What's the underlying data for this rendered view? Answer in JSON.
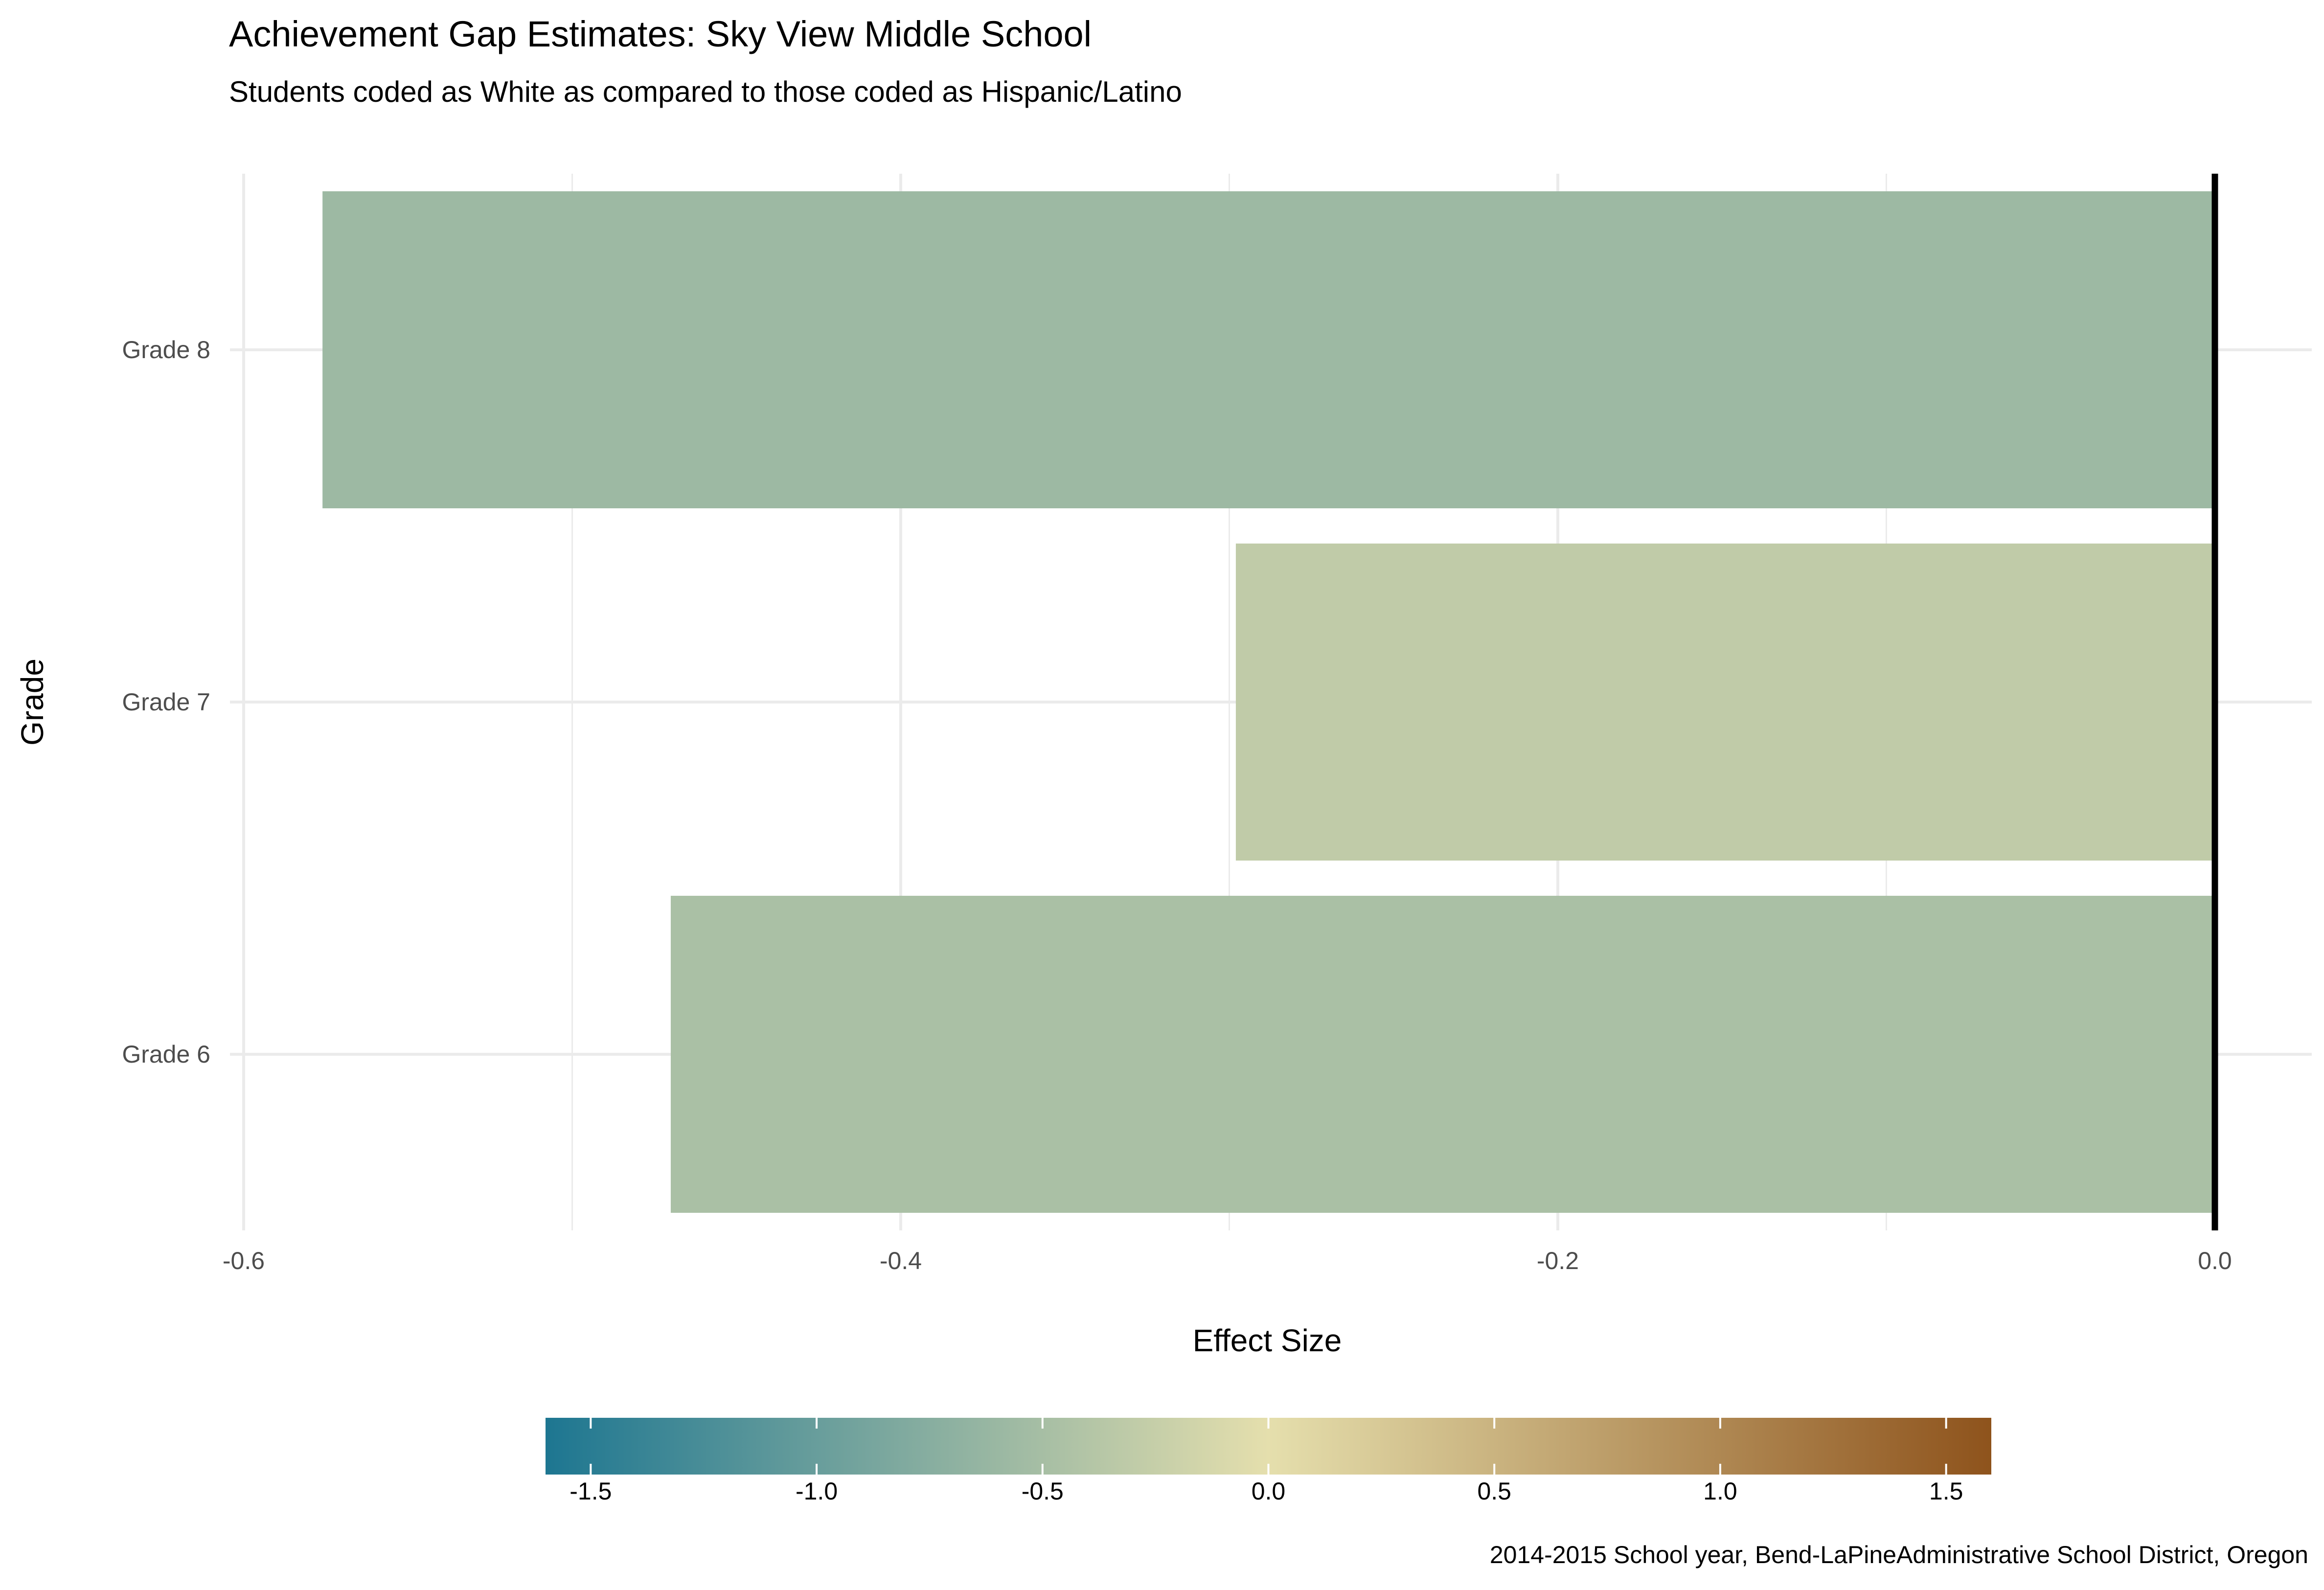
{
  "chart_data": {
    "type": "bar",
    "orientation": "horizontal",
    "title": "Achievement Gap Estimates: Sky View Middle School",
    "subtitle": "Students coded as White as compared to those coded as Hispanic/Latino",
    "xlabel": "Effect Size",
    "ylabel": "Grade",
    "caption": "2014-2015 School year, Bend-LaPineAdministrative School District, Oregon",
    "categories": [
      "Grade 6",
      "Grade 7",
      "Grade 8"
    ],
    "values": [
      -0.47,
      -0.298,
      -0.576
    ],
    "xlim": [
      -0.6,
      0.0
    ],
    "x_ticks": [
      -0.6,
      -0.4,
      -0.2,
      0.0
    ],
    "x_tick_labels": [
      "-0.6",
      "-0.4",
      "-0.2",
      "0.0"
    ],
    "reference_line": 0.0,
    "grid": true,
    "colorbar": {
      "placement": "bottom",
      "range": [
        -1.6,
        1.6
      ],
      "ticks": [
        -1.5,
        -1.0,
        -0.5,
        0.0,
        0.5,
        1.0,
        1.5
      ],
      "tick_labels": [
        "-1.5",
        "-1.0",
        "-0.5",
        "0.0",
        "0.5",
        "1.0",
        "1.5"
      ],
      "colors": [
        "#1d7691",
        "#e5dfad",
        "#8e531c"
      ]
    }
  }
}
